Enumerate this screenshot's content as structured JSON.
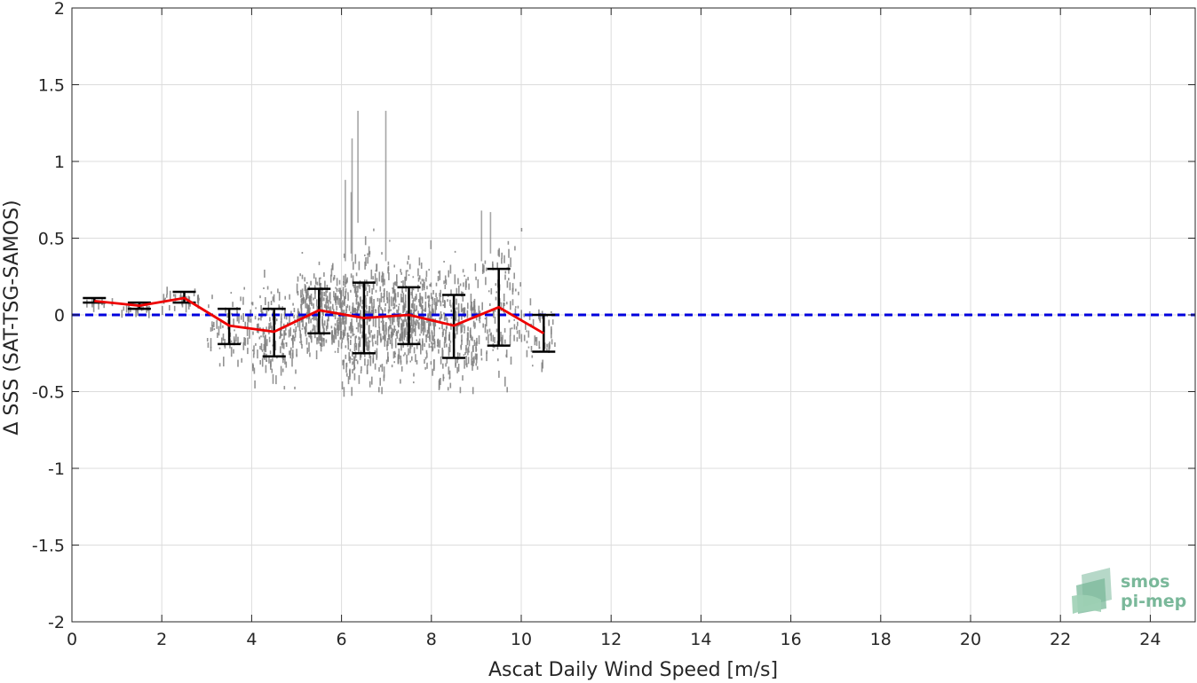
{
  "chart_data": {
    "type": "scatter",
    "xlabel": "Ascat Daily Wind Speed [m/s]",
    "ylabel": "Δ SSS (SAT-TSG-SAMOS)",
    "xlim": [
      0,
      25
    ],
    "ylim": [
      -2,
      2
    ],
    "x_ticks": [
      "0",
      "2",
      "4",
      "6",
      "8",
      "10",
      "12",
      "14",
      "16",
      "18",
      "20",
      "22",
      "24"
    ],
    "y_ticks": [
      "2",
      "1.5",
      "1",
      "0.5",
      "0",
      "-0.5",
      "-1",
      "-1.5",
      "-2"
    ],
    "grid": true,
    "reference_line": {
      "y": 0,
      "color": "#0000dd",
      "style": "dashed"
    },
    "series": [
      {
        "kind": "mean_line",
        "color": "#ee0000",
        "x": [
          0.5,
          1.5,
          2.5,
          3.5,
          4.5,
          5.5,
          6.5,
          7.5,
          8.5,
          9.5,
          10.5
        ],
        "y": [
          0.09,
          0.06,
          0.11,
          -0.07,
          -0.11,
          0.03,
          -0.02,
          0.0,
          -0.07,
          0.05,
          -0.12
        ]
      },
      {
        "kind": "error_bars",
        "color": "#000000",
        "x": [
          0.5,
          1.5,
          2.5,
          3.5,
          4.5,
          5.5,
          6.5,
          7.5,
          8.5,
          9.5,
          10.5
        ],
        "low": [
          0.08,
          0.04,
          0.08,
          -0.19,
          -0.27,
          -0.12,
          -0.25,
          -0.19,
          -0.28,
          -0.2,
          -0.24
        ],
        "high": [
          0.11,
          0.08,
          0.15,
          0.04,
          0.04,
          0.17,
          0.21,
          0.18,
          0.13,
          0.3,
          0.0
        ]
      },
      {
        "kind": "raw_points",
        "color": "#808080",
        "x_range": [
          0.3,
          10.8
        ],
        "y_range": [
          -0.47,
          1.33
        ]
      }
    ]
  },
  "logo": {
    "line1": "smos",
    "line2": "pi-mep"
  }
}
